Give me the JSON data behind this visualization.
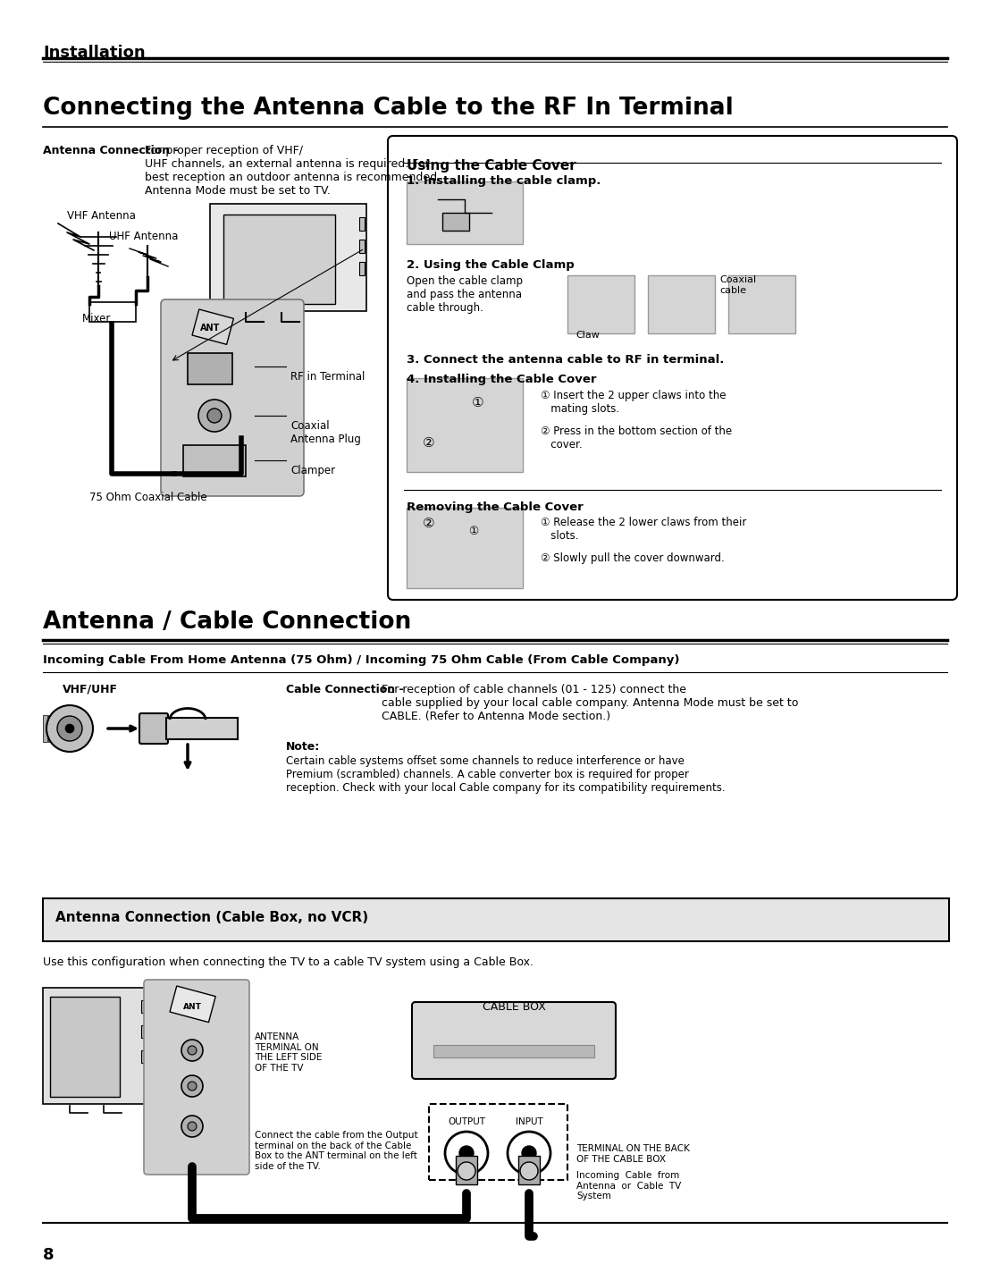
{
  "bg_color": "#ffffff",
  "page_width": 10.8,
  "page_height": 13.97,
  "section1_title": "Installation",
  "section2_title": "Connecting the Antenna Cable to the RF In Terminal",
  "section3_title": "Antenna / Cable Connection",
  "antenna_conn_bold": "Antenna Connection -",
  "antenna_conn_text": "For proper reception of VHF/\nUHF channels, an external antenna is required. For\nbest reception an outdoor antenna is recommended.\nAntenna Mode must be set to TV.",
  "cable_cover_title": "Using the Cable Cover",
  "step1": "1. Installing the cable clamp.",
  "step2_title": "2. Using the Cable Clamp",
  "step2_text": "Open the cable clamp\nand pass the antenna\ncable through.",
  "claw_label": "Claw",
  "coaxial_cable_label": "Coaxial\ncable",
  "step3": "3. Connect the antenna cable to RF in terminal.",
  "step4_bold": "4. Installing the Cable Cover",
  "step4_item1": "① Insert the 2 upper claws into the\n   mating slots.",
  "step4_item2": "② Press in the bottom section of the\n   cover.",
  "removing_title": "Removing the Cable Cover",
  "rem_item1": "① Release the 2 lower claws from their\n   slots.",
  "rem_item2": "② Slowly pull the cover downward.",
  "vhf_antenna": "VHF Antenna",
  "uhf_antenna": "UHF Antenna",
  "mixer_label": "Mixer",
  "rf_terminal": "RF in Terminal",
  "coax_plug": "Coaxial\nAntenna Plug",
  "clamper": "Clamper",
  "coax_cable_75": "75 Ohm Coaxial Cable",
  "section3_sub": "Incoming Cable From Home Antenna (75 Ohm) / Incoming 75 Ohm Cable (From Cable Company)",
  "vhf_uhf_label": "VHF/UHF",
  "cable_conn_bold": "Cable Connection -",
  "cable_conn_text": "For reception of cable channels (01 - 125) connect the\ncable supplied by your local cable company. Antenna Mode must be set to\nCABLE. (Refer to Antenna Mode section.)",
  "note_bold": "Note:",
  "note_text": "Certain cable systems offset some channels to reduce interference or have\nPremium (scrambled) channels. A cable converter box is required for proper\nreception. Check with your local Cable company for its compatibility requirements.",
  "box_title": "Antenna Connection (Cable Box, no VCR)",
  "box_desc": "Use this configuration when connecting the TV to a cable TV system using a Cable Box.",
  "ant_terminal_label": "ANTENNA\nTERMINAL ON\nTHE LEFT SIDE\nOF THE TV",
  "cable_box_label": "CABLE BOX",
  "output_label": "OUTPUT",
  "input_label": "INPUT",
  "terminal_back": "TERMINAL ON THE BACK\nOF THE CABLE BOX",
  "connect_text": "Connect the cable from the Output\nterminal on the back of the Cable\nBox to the ANT terminal on the left\nside of the TV.",
  "incoming_cable": "Incoming  Cable  from\nAntenna  or  Cable  TV\nSystem",
  "page_number": "8"
}
